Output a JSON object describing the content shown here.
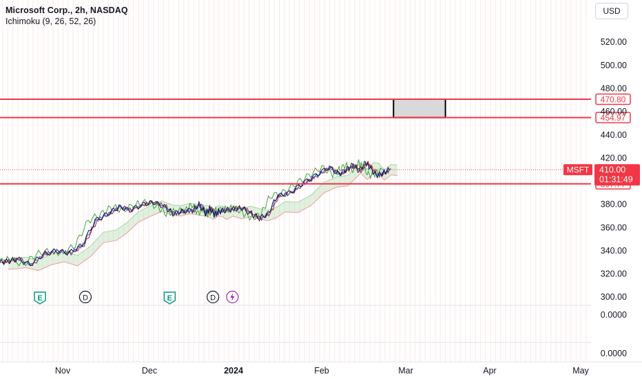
{
  "header": {
    "title": "Microsoft Corp., 2h, NASDAQ",
    "indicator": "Ichimoku (9, 26, 52, 26)",
    "currency_button": "USD"
  },
  "chart_data": {
    "type": "line",
    "symbol": "MSFT",
    "x_ticks": [
      "Nov",
      "Dec",
      "2024",
      "Feb",
      "Mar",
      "Apr",
      "May"
    ],
    "y_ticks": [
      300,
      320,
      340,
      360,
      380,
      400,
      420,
      440,
      460,
      480,
      500,
      520
    ],
    "ylim": [
      293,
      535
    ],
    "pane_ticks": [
      "0.0000",
      "0.0000"
    ],
    "price_series": {
      "name": "MSFT",
      "x_months": [
        0.0,
        0.18,
        0.4,
        0.7,
        1.0,
        1.3,
        1.6,
        1.9,
        2.2,
        2.5,
        2.75,
        3.0,
        3.3,
        3.55,
        3.8,
        4.0,
        4.2,
        4.45,
        4.6,
        4.75,
        4.85,
        4.95,
        5.05,
        5.2,
        5.4,
        5.6,
        5.8,
        6.0,
        6.2,
        6.4,
        6.7,
        7.0,
        7.3,
        7.6,
        7.85,
        8.0,
        8.15,
        8.3,
        8.45,
        8.55,
        8.7,
        8.85,
        9.0
      ],
      "values": [
        330,
        331,
        333,
        328,
        337,
        340,
        338,
        345,
        366,
        372,
        378,
        375,
        380,
        382,
        378,
        372,
        374,
        375,
        380,
        372,
        377,
        371,
        374,
        375,
        376,
        377,
        372,
        368,
        372,
        387,
        390,
        398,
        405,
        412,
        406,
        410,
        414,
        409,
        416,
        412,
        405,
        407,
        410
      ]
    },
    "horizontal_levels": [
      {
        "value": 470.8,
        "label": "470.80",
        "color": "#f23645"
      },
      {
        "value": 454.97,
        "label": "454.97",
        "color": "#f23645"
      },
      {
        "value": 397.77,
        "label": "397.77",
        "color": "#f23645"
      }
    ],
    "target_box": {
      "x_start_month": 9.1,
      "x_end_month": 10.3,
      "y_low": 454.97,
      "y_high": 470.8,
      "fill": "#d9d9d9"
    },
    "last_price": {
      "symbol": "MSFT",
      "value": "410.00",
      "countdown": "01:31:49",
      "color": "#f23645"
    },
    "events": [
      {
        "type": "E",
        "x_month": 0.0,
        "color": "#089981"
      },
      {
        "type": "D",
        "x_month": 1.05,
        "color": "#2962ff"
      },
      {
        "type": "E",
        "x_month": 3.0,
        "color": "#089981"
      },
      {
        "type": "D",
        "x_month": 4.0,
        "color": "#2962ff"
      },
      {
        "type": "lightning",
        "x_month": 4.45,
        "color": "#9c27b0"
      }
    ],
    "colors": {
      "price": "#131722",
      "tenkan": "#2962ff",
      "kijun": "#b71c1c",
      "lagging": "#43a047",
      "cloud_up": "#a5d6a7",
      "cloud_down": "#ef9a9a",
      "grid": "#fbe9e7"
    }
  }
}
